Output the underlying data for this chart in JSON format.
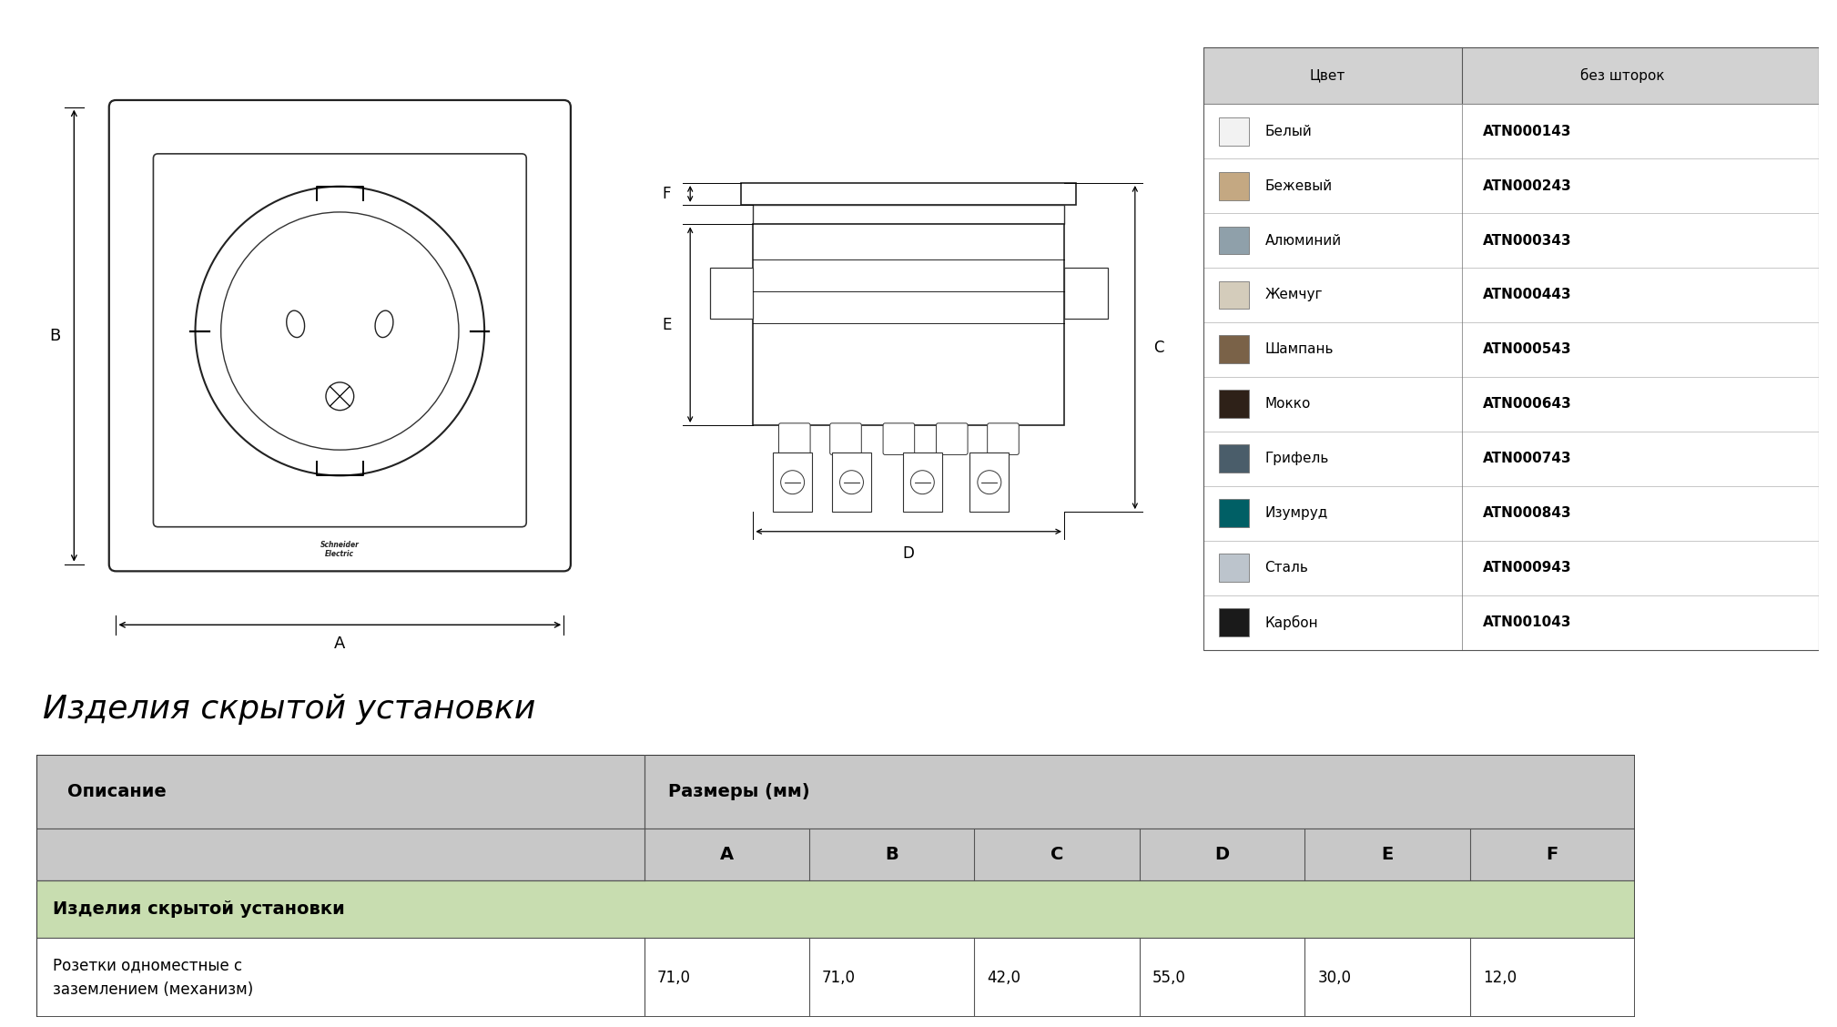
{
  "title_section": "Изделия скрытой установки",
  "color_table_header": [
    "Цвет",
    "без шторок"
  ],
  "color_rows": [
    {
      "name": "Белый",
      "color": "#f2f2f2",
      "border": "#999999",
      "code": "ATN000143"
    },
    {
      "name": "Бежевый",
      "color": "#c4a882",
      "border": "#999999",
      "code": "ATN000243"
    },
    {
      "name": "Алюминий",
      "color": "#8fa0aa",
      "border": "#999999",
      "code": "ATN000343"
    },
    {
      "name": "Жемчуг",
      "color": "#d4ccbb",
      "border": "#999999",
      "code": "ATN000443"
    },
    {
      "name": "Шампань",
      "color": "#7a6248",
      "border": "#999999",
      "code": "ATN000543"
    },
    {
      "name": "Мокко",
      "color": "#2e2118",
      "border": "#999999",
      "code": "ATN000643"
    },
    {
      "name": "Грифель",
      "color": "#4a5d6a",
      "border": "#999999",
      "code": "ATN000743"
    },
    {
      "name": "Изумруд",
      "color": "#005f65",
      "border": "#999999",
      "code": "ATN000843"
    },
    {
      "name": "Сталь",
      "color": "#bcc4cc",
      "border": "#999999",
      "code": "ATN000943"
    },
    {
      "name": "Карбон",
      "color": "#1a1a1a",
      "border": "#999999",
      "code": "ATN001043"
    }
  ],
  "dim_table_header1": "Описание",
  "dim_table_header2": "Размеры (мм)",
  "dim_cols": [
    "A",
    "B",
    "C",
    "D",
    "E",
    "F"
  ],
  "dim_section_row": "Изделия скрытой установки",
  "dim_data_desc": "Розетки одноместные с\nзаземлением (механизм)",
  "dim_data_values": [
    "71,0",
    "71,0",
    "42,0",
    "55,0",
    "30,0",
    "12,0"
  ],
  "bg_color": "#ffffff",
  "color_hdr_bg": "#d2d2d2",
  "dim_hdr_bg": "#c8c8c8",
  "dim_green_bg": "#c8ddb0",
  "color_row_bg": "#ffffff",
  "color_divider": "#bbbbbb"
}
